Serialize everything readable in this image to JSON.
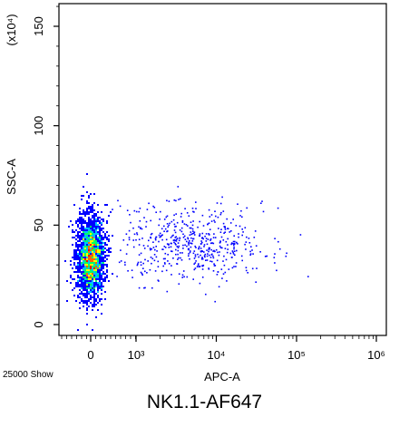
{
  "caption": "NK1.1-AF647",
  "chart_data": {
    "type": "scatter",
    "subtype": "flow-cytometry density dot plot",
    "xlabel": "APC-A",
    "ylabel": "SSC-A",
    "y_multiplier": "(x10⁴)",
    "events_label": "25000 Show",
    "x_scale": "biexponential",
    "x_ticks": [
      "0",
      "10³",
      "10⁴",
      "10⁵",
      "10⁶"
    ],
    "y_ticks": [
      "0",
      "50",
      "100",
      "150"
    ],
    "ylim": [
      0,
      165
    ],
    "grid": false,
    "colors": {
      "low": "#0000ff",
      "mid_low": "#00bfff",
      "mid": "#00ff66",
      "mid_high": "#ffff00",
      "high": "#ff6600",
      "peak": "#ff0000"
    },
    "populations": [
      {
        "name": "",
        "x_center": 0,
        "x_spread": 150,
        "y_center": 34,
        "y_spread": 9,
        "share": 0.86
      },
      {
        "name": "",
        "x_center": 5000,
        "x_spread": 0.45,
        "y_center": 40,
        "y_spread": 9,
        "share": 0.14
      }
    ]
  }
}
